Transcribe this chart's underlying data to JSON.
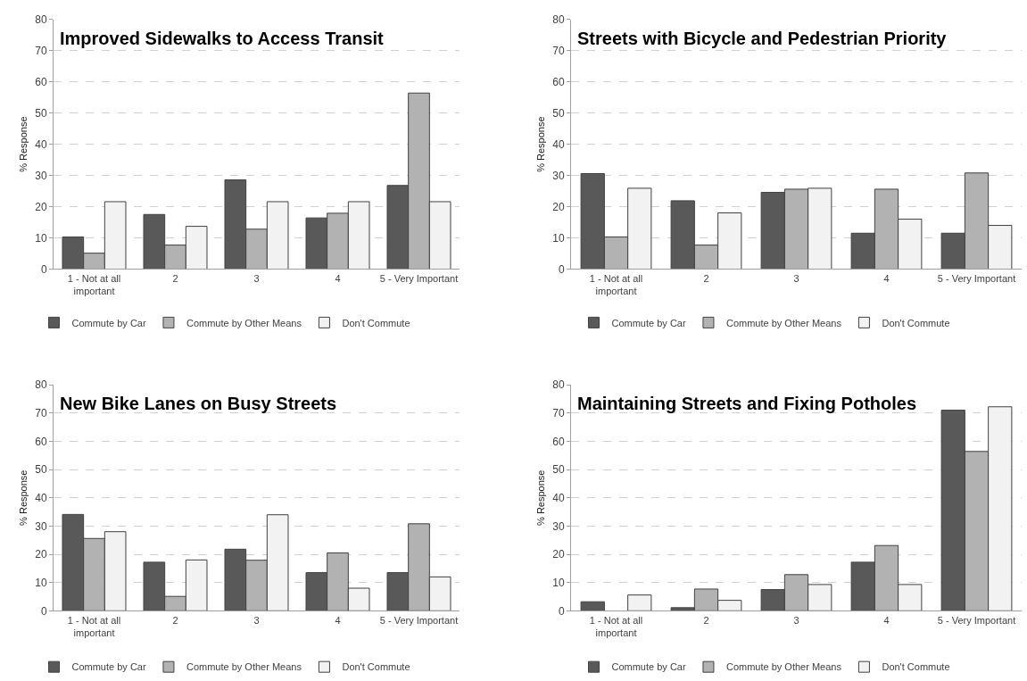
{
  "chart_data": [
    {
      "type": "bar",
      "title": "Improved Sidewalks to Access Transit",
      "ylabel": "% Response",
      "categories": [
        "1 - Not at all important",
        "2",
        "3",
        "4",
        "5 - Very Important"
      ],
      "ylim": [
        0,
        80
      ],
      "yticks": [
        0,
        10,
        20,
        30,
        40,
        50,
        60,
        70,
        80
      ],
      "grid": "y",
      "legend": "bottom",
      "series": [
        {
          "name": "Commute by Car",
          "color": "#595959",
          "values": [
            10.3,
            17.5,
            28.6,
            16.4,
            26.8
          ]
        },
        {
          "name": "Commute by Other Means",
          "color": "#b2b2b2",
          "values": [
            5.1,
            7.7,
            12.8,
            17.9,
            56.4
          ]
        },
        {
          "name": "Don't Commute",
          "color": "#f2f2f2",
          "values": [
            21.6,
            13.7,
            21.6,
            21.6,
            21.6
          ]
        }
      ]
    },
    {
      "type": "bar",
      "title": "Streets with Bicycle and Pedestrian Priority",
      "ylabel": "% Response",
      "categories": [
        "1 - Not at all important",
        "2",
        "3",
        "4",
        "5 - Very Important"
      ],
      "ylim": [
        0,
        80
      ],
      "yticks": [
        0,
        10,
        20,
        30,
        40,
        50,
        60,
        70,
        80
      ],
      "grid": "y",
      "legend": "bottom",
      "series": [
        {
          "name": "Commute by Car",
          "color": "#595959",
          "values": [
            30.6,
            21.9,
            24.6,
            11.5,
            11.5
          ]
        },
        {
          "name": "Commute by Other Means",
          "color": "#b2b2b2",
          "values": [
            10.3,
            7.7,
            25.6,
            25.6,
            30.8
          ]
        },
        {
          "name": "Don't Commute",
          "color": "#f2f2f2",
          "values": [
            25.9,
            18.0,
            25.9,
            16.0,
            14.0
          ]
        }
      ]
    },
    {
      "type": "bar",
      "title": "New Bike Lanes on Busy Streets",
      "ylabel": "% Response",
      "categories": [
        "1 - Not at all important",
        "2",
        "3",
        "4",
        "5 - Very Important"
      ],
      "ylim": [
        0,
        80
      ],
      "yticks": [
        0,
        10,
        20,
        30,
        40,
        50,
        60,
        70,
        80
      ],
      "grid": "y",
      "legend": "bottom",
      "series": [
        {
          "name": "Commute by Car",
          "color": "#595959",
          "values": [
            34.1,
            17.2,
            21.8,
            13.5,
            13.5
          ]
        },
        {
          "name": "Commute by Other Means",
          "color": "#b2b2b2",
          "values": [
            25.6,
            5.1,
            17.9,
            20.5,
            30.8
          ]
        },
        {
          "name": "Don't Commute",
          "color": "#f2f2f2",
          "values": [
            28.0,
            18.0,
            34.0,
            8.0,
            12.0
          ]
        }
      ]
    },
    {
      "type": "bar",
      "title": "Maintaining Streets and Fixing Potholes",
      "ylabel": "% Response",
      "categories": [
        "1 - Not at all important",
        "2",
        "3",
        "4",
        "5 - Very Important"
      ],
      "ylim": [
        0,
        80
      ],
      "yticks": [
        0,
        10,
        20,
        30,
        40,
        50,
        60,
        70,
        80
      ],
      "grid": "y",
      "legend": "bottom",
      "series": [
        {
          "name": "Commute by Car",
          "color": "#595959",
          "values": [
            3.2,
            1.1,
            7.5,
            17.2,
            71.0
          ]
        },
        {
          "name": "Commute by Other Means",
          "color": "#b2b2b2",
          "values": [
            null,
            7.7,
            12.8,
            23.1,
            56.4
          ]
        },
        {
          "name": "Don't Commute",
          "color": "#f2f2f2",
          "values": [
            5.6,
            3.7,
            9.3,
            9.3,
            72.2
          ]
        }
      ]
    }
  ]
}
